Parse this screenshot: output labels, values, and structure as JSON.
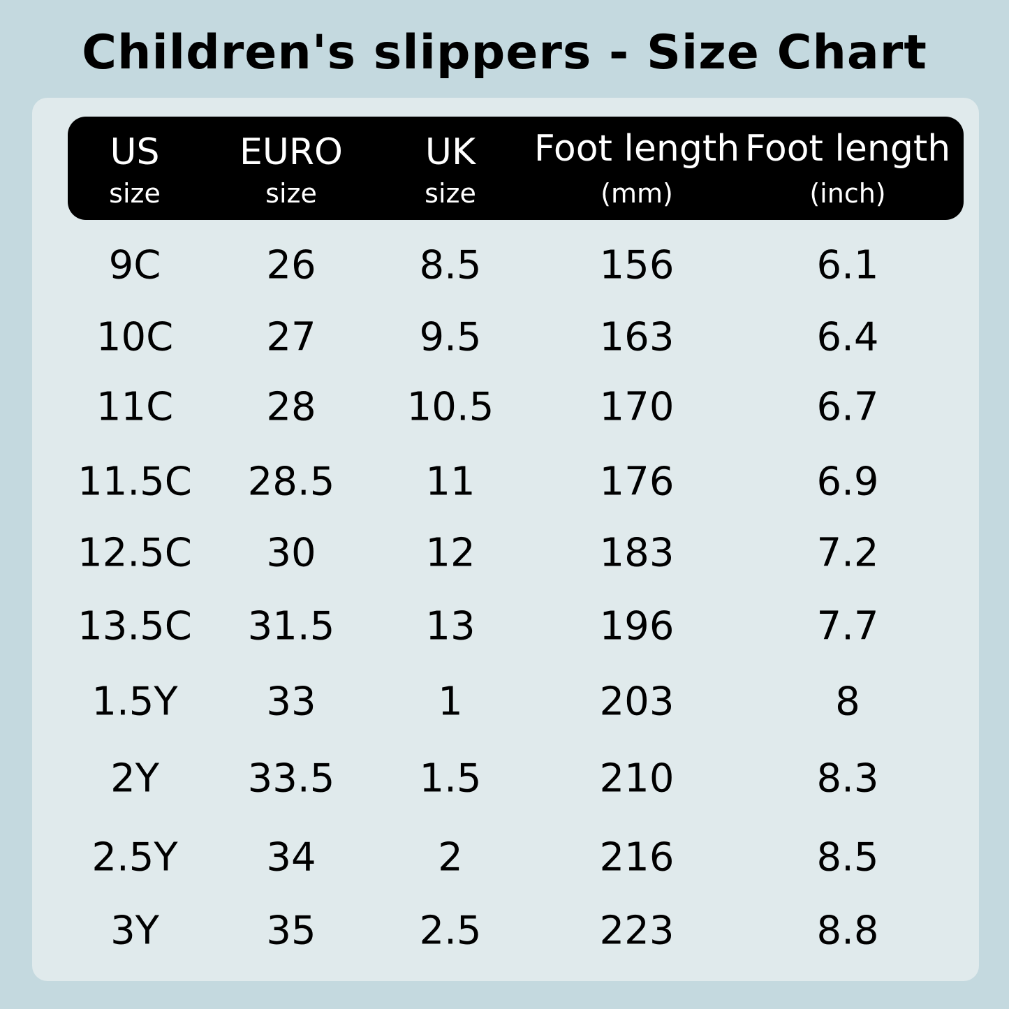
{
  "header": {
    "title": "Children's slippers - Size Chart"
  },
  "table": {
    "columns": [
      {
        "title": "US",
        "unit": "size"
      },
      {
        "title": "EURO",
        "unit": "size"
      },
      {
        "title": "UK",
        "unit": "size"
      },
      {
        "title": "Foot length",
        "unit": "(mm)"
      },
      {
        "title": "Foot length",
        "unit": "(inch)"
      }
    ],
    "rows": [
      [
        "9C",
        "26",
        "8.5",
        "156",
        "6.1"
      ],
      [
        "10C",
        "27",
        "9.5",
        "163",
        "6.4"
      ],
      [
        "11C",
        "28",
        "10.5",
        "170",
        "6.7"
      ],
      [
        "11.5C",
        "28.5",
        "11",
        "176",
        "6.9"
      ],
      [
        "12.5C",
        "30",
        "12",
        "183",
        "7.2"
      ],
      [
        "13.5C",
        "31.5",
        "13",
        "196",
        "7.7"
      ],
      [
        "1.5Y",
        "33",
        "1",
        "203",
        "8"
      ],
      [
        "2Y",
        "33.5",
        "1.5",
        "210",
        "8.3"
      ],
      [
        "2.5Y",
        "34",
        "2",
        "216",
        "8.5"
      ],
      [
        "3Y",
        "35",
        "2.5",
        "223",
        "8.8"
      ]
    ]
  }
}
